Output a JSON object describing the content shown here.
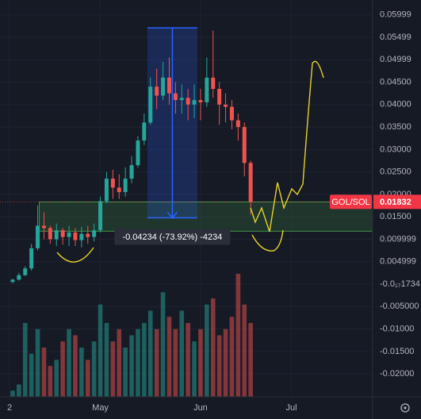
{
  "chart_data": {
    "type": "candlestick",
    "x": [
      1,
      3,
      5,
      7,
      9,
      11,
      13,
      15,
      17,
      19,
      21,
      23,
      25,
      27,
      29,
      31,
      33,
      35,
      37,
      39,
      41,
      43,
      45,
      47,
      49,
      51,
      53,
      55,
      57,
      59,
      61,
      63,
      65,
      67,
      69,
      71,
      73,
      75,
      77
    ],
    "open": [
      0.0005,
      0.001,
      0.002,
      0.0035,
      0.008,
      0.013,
      0.0125,
      0.01,
      0.012,
      0.0105,
      0.0115,
      0.0098,
      0.0112,
      0.0105,
      0.012,
      0.0185,
      0.0235,
      0.0215,
      0.0205,
      0.0235,
      0.0265,
      0.032,
      0.036,
      0.044,
      0.042,
      0.046,
      0.0425,
      0.041,
      0.0415,
      0.04,
      0.041,
      0.0405,
      0.046,
      0.0435,
      0.04,
      0.0395,
      0.0365,
      0.035,
      0.027
    ],
    "high": [
      0.0012,
      0.0025,
      0.004,
      0.009,
      0.0175,
      0.016,
      0.013,
      0.0135,
      0.0125,
      0.013,
      0.0125,
      0.0128,
      0.013,
      0.0135,
      0.0195,
      0.025,
      0.0255,
      0.0245,
      0.026,
      0.0285,
      0.033,
      0.038,
      0.046,
      0.048,
      0.0495,
      0.0505,
      0.045,
      0.0445,
      0.0435,
      0.0445,
      0.0435,
      0.0505,
      0.0565,
      0.045,
      0.0425,
      0.041,
      0.038,
      0.036,
      0.0275
    ],
    "low": [
      0.0002,
      0.0008,
      0.0018,
      0.003,
      0.0075,
      0.01,
      0.009,
      0.0085,
      0.0088,
      0.0085,
      0.0085,
      0.0082,
      0.009,
      0.0095,
      0.0115,
      0.018,
      0.019,
      0.019,
      0.0195,
      0.0225,
      0.026,
      0.031,
      0.0355,
      0.039,
      0.041,
      0.04,
      0.038,
      0.038,
      0.0365,
      0.037,
      0.0365,
      0.0395,
      0.0415,
      0.0355,
      0.036,
      0.0345,
      0.032,
      0.024,
      0.0155
    ],
    "close": [
      0.001,
      0.002,
      0.0035,
      0.008,
      0.013,
      0.0125,
      0.01,
      0.012,
      0.0105,
      0.0115,
      0.0098,
      0.0112,
      0.0105,
      0.012,
      0.0185,
      0.0235,
      0.0215,
      0.0205,
      0.0235,
      0.0265,
      0.032,
      0.036,
      0.044,
      0.042,
      0.046,
      0.0425,
      0.041,
      0.0415,
      0.04,
      0.041,
      0.0405,
      0.046,
      0.0435,
      0.04,
      0.0395,
      0.0365,
      0.035,
      0.027,
      0.01832
    ],
    "volume": [
      5,
      10,
      60,
      35,
      55,
      40,
      25,
      30,
      45,
      55,
      50,
      40,
      30,
      45,
      75,
      60,
      45,
      55,
      40,
      50,
      55,
      60,
      70,
      55,
      85,
      65,
      55,
      70,
      60,
      45,
      55,
      75,
      80,
      50,
      55,
      65,
      100,
      75,
      60
    ],
    "up_color": "#26a69a",
    "down_color": "#ef5350",
    "xlim": [
      -3.04,
      115.95
    ],
    "xticks": [
      {
        "value": 0,
        "label": "2"
      },
      {
        "value": 29,
        "label": "May"
      },
      {
        "value": 61,
        "label": "Jun"
      },
      {
        "value": 90,
        "label": "Jul"
      }
    ],
    "ylim": [
      -0.0251,
      0.0633
    ],
    "yticks": [
      0.05999,
      0.05499,
      0.04999,
      {
        "value": 0.045,
        "label": "0.04500"
      },
      {
        "value": 0.04,
        "label": "0.04000"
      },
      {
        "value": 0.035,
        "label": "0.03500"
      },
      {
        "value": 0.03,
        "label": "0.03000"
      },
      {
        "value": 0.025,
        "label": "0.02500"
      },
      {
        "value": 0.02,
        "label": "0.02000"
      },
      {
        "value": 0.015,
        "label": "0.01500"
      },
      0.009999,
      0.004999,
      {
        "value": -1.734e-18,
        "label": "-0.0₁₇1734"
      },
      {
        "value": -0.005,
        "label": "-0.005000"
      },
      {
        "value": -0.01,
        "label": "-0.01000"
      },
      {
        "value": -0.015,
        "label": "-0.01500"
      },
      {
        "value": -0.02,
        "label": "-0.02000"
      }
    ],
    "grid": true,
    "price_tag": {
      "label": "GOL/SOL",
      "value": 0.01832
    },
    "measure": {
      "label": "-0.04234 (-73.92%) -4234",
      "from": 0.0571,
      "to": 0.01476,
      "x_range": [
        44,
        60
      ]
    },
    "zone": {
      "top": 0.0183,
      "bottom": 0.0118,
      "x_start": 9.5
    }
  }
}
